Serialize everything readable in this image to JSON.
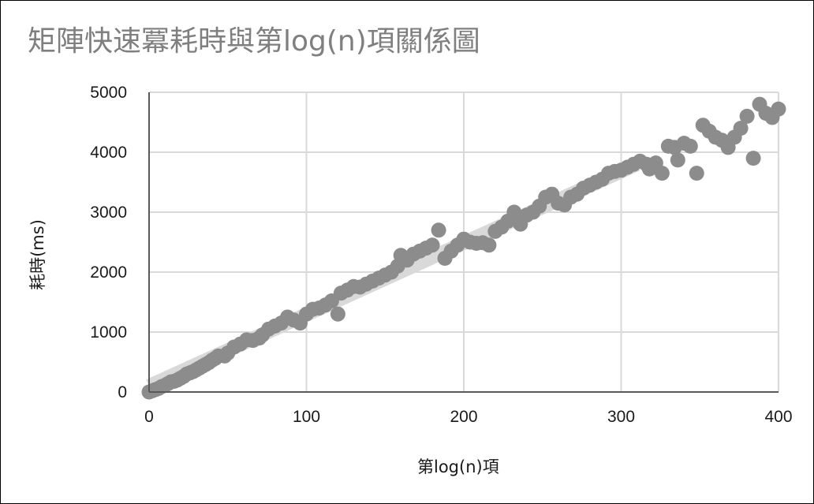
{
  "chart_data": {
    "type": "scatter",
    "title": "矩陣快速冪耗時與第log(n)項關係圖",
    "xlabel": "第log(n)項",
    "ylabel": "耗時(ms)",
    "xlim": [
      0,
      400
    ],
    "ylim": [
      0,
      5000
    ],
    "x_ticks": [
      "0",
      "100",
      "200",
      "300",
      "400"
    ],
    "y_ticks": [
      "0",
      "1000",
      "2000",
      "3000",
      "4000",
      "5000"
    ],
    "grid": true,
    "legend": "none",
    "trendline": {
      "type": "linear",
      "from": [
        0,
        100
      ],
      "to": [
        310,
        3800
      ]
    },
    "colors": {
      "points": "#8c8c8c",
      "trendline": "#d9d9d9",
      "grid": "#d9d9d9",
      "axis": "#595959"
    },
    "points": [
      [
        0,
        0
      ],
      [
        2,
        20
      ],
      [
        4,
        40
      ],
      [
        6,
        60
      ],
      [
        8,
        90
      ],
      [
        10,
        110
      ],
      [
        12,
        140
      ],
      [
        14,
        170
      ],
      [
        16,
        180
      ],
      [
        18,
        200
      ],
      [
        20,
        230
      ],
      [
        22,
        260
      ],
      [
        24,
        300
      ],
      [
        26,
        320
      ],
      [
        28,
        340
      ],
      [
        30,
        370
      ],
      [
        32,
        400
      ],
      [
        34,
        430
      ],
      [
        36,
        460
      ],
      [
        38,
        490
      ],
      [
        40,
        530
      ],
      [
        42,
        560
      ],
      [
        44,
        600
      ],
      [
        48,
        600
      ],
      [
        50,
        650
      ],
      [
        54,
        750
      ],
      [
        58,
        800
      ],
      [
        62,
        870
      ],
      [
        66,
        860
      ],
      [
        70,
        900
      ],
      [
        72,
        950
      ],
      [
        76,
        1050
      ],
      [
        80,
        1100
      ],
      [
        84,
        1150
      ],
      [
        88,
        1250
      ],
      [
        92,
        1200
      ],
      [
        96,
        1150
      ],
      [
        100,
        1300
      ],
      [
        104,
        1380
      ],
      [
        108,
        1400
      ],
      [
        112,
        1450
      ],
      [
        116,
        1520
      ],
      [
        120,
        1300
      ],
      [
        122,
        1650
      ],
      [
        126,
        1700
      ],
      [
        130,
        1760
      ],
      [
        134,
        1750
      ],
      [
        138,
        1800
      ],
      [
        142,
        1850
      ],
      [
        146,
        1900
      ],
      [
        150,
        1950
      ],
      [
        154,
        2000
      ],
      [
        158,
        2100
      ],
      [
        160,
        2280
      ],
      [
        164,
        2200
      ],
      [
        168,
        2300
      ],
      [
        172,
        2350
      ],
      [
        176,
        2400
      ],
      [
        180,
        2450
      ],
      [
        184,
        2700
      ],
      [
        188,
        2230
      ],
      [
        192,
        2350
      ],
      [
        196,
        2450
      ],
      [
        200,
        2550
      ],
      [
        204,
        2500
      ],
      [
        208,
        2480
      ],
      [
        212,
        2490
      ],
      [
        216,
        2450
      ],
      [
        220,
        2680
      ],
      [
        224,
        2750
      ],
      [
        228,
        2850
      ],
      [
        232,
        3000
      ],
      [
        236,
        2800
      ],
      [
        240,
        2950
      ],
      [
        244,
        3000
      ],
      [
        248,
        3100
      ],
      [
        252,
        3250
      ],
      [
        256,
        3300
      ],
      [
        260,
        3150
      ],
      [
        264,
        3120
      ],
      [
        268,
        3250
      ],
      [
        272,
        3300
      ],
      [
        276,
        3400
      ],
      [
        280,
        3450
      ],
      [
        284,
        3500
      ],
      [
        288,
        3550
      ],
      [
        292,
        3650
      ],
      [
        296,
        3680
      ],
      [
        300,
        3700
      ],
      [
        304,
        3750
      ],
      [
        308,
        3800
      ],
      [
        312,
        3850
      ],
      [
        316,
        3800
      ],
      [
        318,
        3720
      ],
      [
        322,
        3820
      ],
      [
        326,
        3650
      ],
      [
        330,
        4100
      ],
      [
        334,
        4080
      ],
      [
        336,
        3870
      ],
      [
        340,
        4150
      ],
      [
        344,
        4100
      ],
      [
        348,
        3650
      ],
      [
        352,
        4450
      ],
      [
        356,
        4350
      ],
      [
        360,
        4250
      ],
      [
        364,
        4200
      ],
      [
        368,
        4080
      ],
      [
        372,
        4250
      ],
      [
        376,
        4400
      ],
      [
        380,
        4600
      ],
      [
        384,
        3900
      ],
      [
        388,
        4800
      ],
      [
        392,
        4650
      ],
      [
        396,
        4580
      ],
      [
        400,
        4720
      ]
    ]
  }
}
